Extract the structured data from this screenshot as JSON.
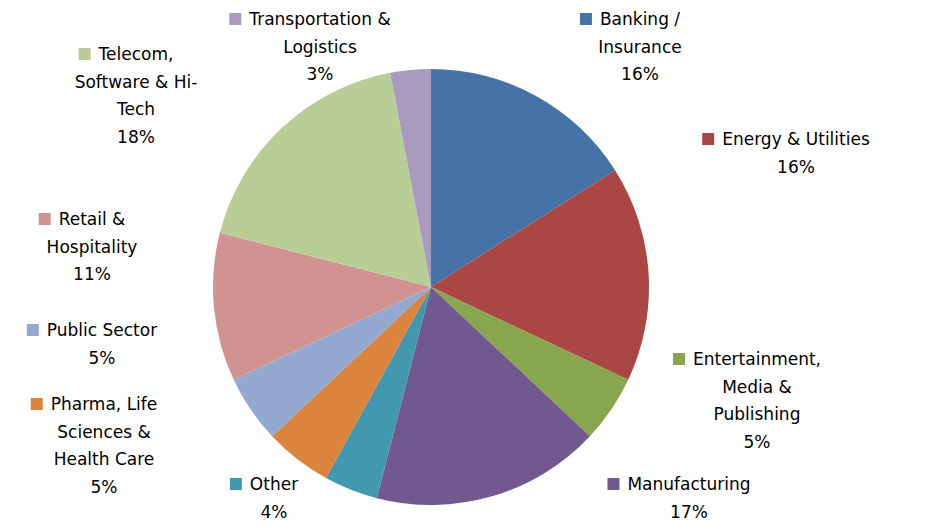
{
  "chart_data": {
    "type": "pie",
    "categories": [
      "Banking / Insurance",
      "Energy & Utilities",
      "Entertainment, Media & Publishing",
      "Manufacturing",
      "Other",
      "Pharma, Life Sciences & Health Care",
      "Public Sector",
      "Retail & Hospitality",
      "Telecom, Software & Hi-Tech",
      "Transportation & Logistics"
    ],
    "values": [
      16,
      16,
      5,
      17,
      4,
      5,
      5,
      11,
      18,
      3
    ],
    "value_labels": [
      "16%",
      "16%",
      "5%",
      "17%",
      "4%",
      "5%",
      "5%",
      "11%",
      "18%",
      "3%"
    ],
    "colors": [
      "#4572a7",
      "#aa4643",
      "#89a54e",
      "#71588f",
      "#4198af",
      "#db843d",
      "#93a9cf",
      "#d19392",
      "#b9cd96",
      "#a99bbd"
    ],
    "data_labels": true
  }
}
